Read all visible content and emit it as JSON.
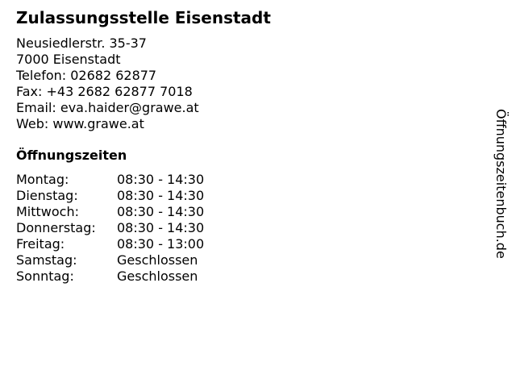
{
  "title": "Zulassungsstelle Eisenstadt",
  "address": [
    "Neusiedlerstr. 35-37",
    "7000 Eisenstadt",
    "Telefon: 02682 62877",
    "Fax: +43 2682 62877 7018",
    "Email: eva.haider@grawe.at",
    "Web: www.grawe.at"
  ],
  "hours_heading": "Öffnungszeiten",
  "hours": [
    {
      "day": "Montag:",
      "time": "08:30 - 14:30"
    },
    {
      "day": "Dienstag:",
      "time": "08:30 - 14:30"
    },
    {
      "day": "Mittwoch:",
      "time": "08:30 - 14:30"
    },
    {
      "day": "Donnerstag:",
      "time": "08:30 - 14:30"
    },
    {
      "day": "Freitag:",
      "time": "08:30 - 13:00"
    },
    {
      "day": "Samstag:",
      "time": "Geschlossen"
    },
    {
      "day": "Sonntag:",
      "time": "Geschlossen"
    }
  ],
  "watermark": "Öffnungszeitenbuch.de"
}
